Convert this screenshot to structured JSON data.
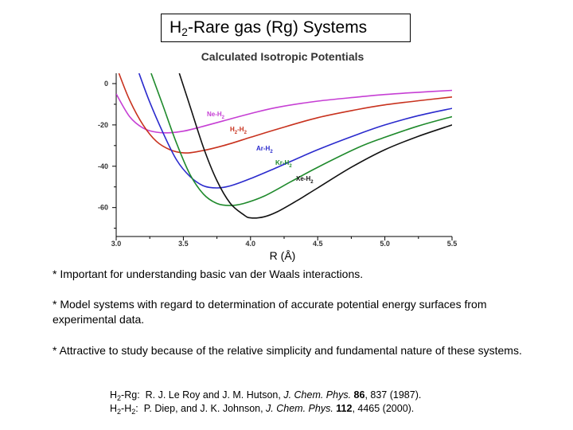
{
  "page_title": {
    "prefix": "H",
    "sub": "2",
    "suffix": "-Rare gas (Rg) Systems"
  },
  "chart_data": {
    "type": "line",
    "title": "Calculated Isotropic Potentials",
    "xlabel": "R (Å)",
    "ylabel": "",
    "xlim": [
      3.0,
      5.5
    ],
    "ylim": [
      -70,
      5
    ],
    "xticks": [
      "3.0",
      "3.5",
      "4.0",
      "4.5",
      "5.0",
      "5.5"
    ],
    "yticks": [
      "0",
      "-20",
      "-40",
      "-60"
    ],
    "grid": false,
    "series": [
      {
        "name": "Ne-H2",
        "label_main": "Ne-H",
        "label_sub": "2",
        "color": "#c63fd4",
        "x": [
          3.0,
          3.1,
          3.2,
          3.3,
          3.4,
          3.5,
          3.6,
          3.8,
          4.0,
          4.2,
          4.5,
          4.8,
          5.0,
          5.25,
          5.5
        ],
        "y": [
          -5,
          -16,
          -21.5,
          -23.5,
          -23.8,
          -23,
          -21.5,
          -18,
          -14.5,
          -11.5,
          -8.5,
          -6.5,
          -5.3,
          -4.2,
          -3.3
        ]
      },
      {
        "name": "H2-H2",
        "label_main": "H",
        "label_sub": "2",
        "label_tail": "-H",
        "label_sub2": "2",
        "color": "#c8321e",
        "x": [
          3.02,
          3.1,
          3.2,
          3.3,
          3.4,
          3.5,
          3.6,
          3.8,
          4.0,
          4.2,
          4.5,
          4.8,
          5.0,
          5.25,
          5.5
        ],
        "y": [
          5,
          -8,
          -20,
          -28,
          -32,
          -33.5,
          -33,
          -30,
          -26,
          -22,
          -16.5,
          -12.5,
          -10.3,
          -8.3,
          -6.5
        ]
      },
      {
        "name": "Ar-H2",
        "label_main": "Ar-H",
        "label_sub": "2",
        "color": "#2a2acd",
        "x": [
          3.17,
          3.25,
          3.35,
          3.45,
          3.55,
          3.65,
          3.75,
          3.85,
          4.0,
          4.2,
          4.5,
          4.8,
          5.0,
          5.25,
          5.5
        ],
        "y": [
          5,
          -9,
          -24,
          -37,
          -45,
          -49.5,
          -50.5,
          -49.5,
          -46,
          -40.5,
          -32,
          -24.5,
          -20,
          -15.5,
          -12
        ]
      },
      {
        "name": "Kr-H2",
        "label_main": "Kr-H",
        "label_sub": "2",
        "color": "#1f8a2c",
        "x": [
          3.26,
          3.35,
          3.45,
          3.55,
          3.65,
          3.75,
          3.85,
          3.95,
          4.1,
          4.3,
          4.5,
          4.8,
          5.0,
          5.25,
          5.5
        ],
        "y": [
          5,
          -11,
          -29,
          -44,
          -53.5,
          -58,
          -59,
          -58,
          -54.5,
          -47.5,
          -40.5,
          -31,
          -26,
          -20.5,
          -16
        ]
      },
      {
        "name": "Xe-H2",
        "label_main": "Xe-H",
        "label_sub": "2",
        "color": "#111111",
        "x": [
          3.47,
          3.55,
          3.65,
          3.75,
          3.85,
          3.95,
          4.0,
          4.1,
          4.2,
          4.35,
          4.5,
          4.75,
          5.0,
          5.25,
          5.5
        ],
        "y": [
          5,
          -11,
          -31,
          -47,
          -58,
          -63.5,
          -65,
          -64.5,
          -62,
          -56.5,
          -50.5,
          -40.5,
          -32,
          -25.5,
          -20
        ]
      }
    ]
  },
  "bullets": [
    "*  Important for understanding basic van der Waals interactions.",
    "*  Model systems with regard to determination of accurate potential energy surfaces from experimental data.",
    "*  Attractive to study because of the relative simplicity and fundamental nature of these systems."
  ],
  "references": [
    {
      "label_main": "H",
      "label_sub": "2",
      "label_tail": "-Rg:",
      "authors": "R. J. Le Roy and J. M. Hutson, ",
      "journal": "J. Chem. Phys.",
      "volume": "86",
      "rest": ", 837 (1987)."
    },
    {
      "label_main": "H",
      "label_sub": "2",
      "label_tail": "-H",
      "label_sub2": "2",
      "label_end": ":",
      "authors": "P. Diep, and J. K. Johnson, ",
      "journal": "J. Chem. Phys.",
      "volume": "112",
      "rest": ", 4465 (2000)."
    }
  ]
}
